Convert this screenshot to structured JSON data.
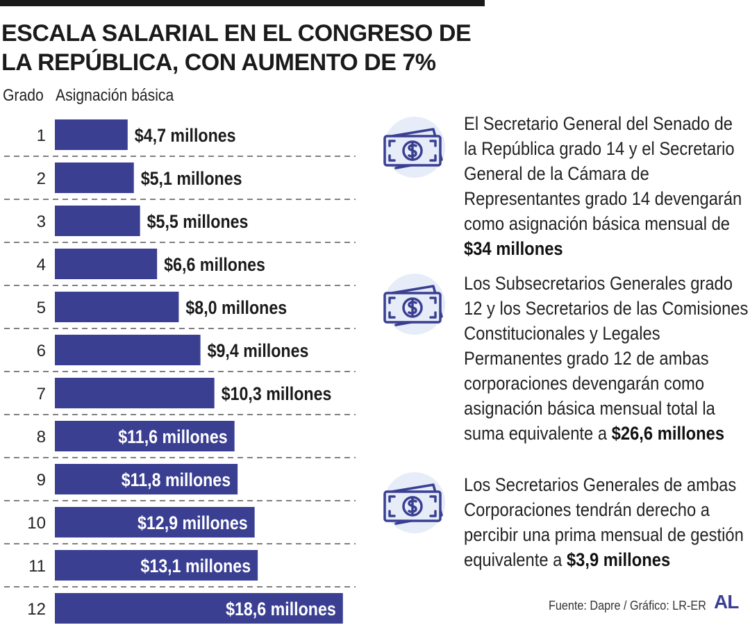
{
  "title": "ESCALA SALARIAL EN EL CONGRESO DE LA REPÚBLICA, CON AUMENTO DE 7%",
  "chart_data": {
    "type": "bar",
    "orientation": "horizontal",
    "title": "ESCALA SALARIAL EN EL CONGRESO DE LA REPÚBLICA, CON AUMENTO DE 7%",
    "category_header": "Grado",
    "value_header": "Asignación básica",
    "categories": [
      "1",
      "2",
      "3",
      "4",
      "5",
      "6",
      "7",
      "8",
      "9",
      "10",
      "11",
      "12"
    ],
    "values": [
      4.7,
      5.1,
      5.5,
      6.6,
      8.0,
      9.4,
      10.3,
      11.6,
      11.8,
      12.9,
      13.1,
      18.6
    ],
    "data_labels": [
      "$4,7 millones",
      "$5,1 millones",
      "$5,5 millones",
      "$6,6 millones",
      "$8,0 millones",
      "$9,4 millones",
      "$10,3 millones",
      "$11,6 millones",
      "$11,8 millones",
      "$12,9 millones",
      "$13,1 millones",
      "$18,6 millones"
    ],
    "unit": "millones",
    "bar_color": "#3a3f92",
    "grid": "dashed row separators"
  },
  "notes": [
    {
      "icon": "money-bill-icon",
      "text_before": "El Secretario General del Senado de la República grado 14 y el Secretario General de la Cámara de Representantes grado 14 devengarán como asignación básica mensual de ",
      "highlight": "$34 millones"
    },
    {
      "icon": "money-bill-icon",
      "text_before": "Los Subsecretarios Generales grado 12 y los Secretarios de las Comisiones Constitucionales y Legales Permanentes grado 12 de ambas corporaciones devengarán como asignación básica mensual total la suma equivalente a ",
      "highlight": "$26,6 millones"
    },
    {
      "icon": "money-bill-icon",
      "text_before": "Los Secretarios Generales de ambas Corporaciones tendrán derecho a percibir una prima mensual de gestión equivalente a ",
      "highlight": "$3,9 millones"
    }
  ],
  "source": "Fuente: Dapre / Gráfico: LR-ER",
  "logo": "AL",
  "colors": {
    "accent": "#3a3f92",
    "icon_bg": "#e6edf8",
    "text": "#1a1a1a"
  }
}
